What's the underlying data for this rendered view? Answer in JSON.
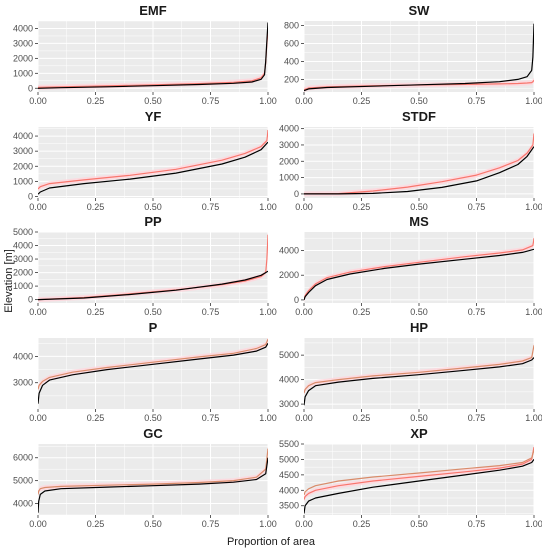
{
  "figure": {
    "xlabel": "Proportion of area",
    "ylabel": "Elevation [m]"
  },
  "colors": {
    "panel_bg": "#ebebeb",
    "grid_major": "#ffffff",
    "observed": "#000000",
    "modelled": "#f8766d",
    "modelled_alt": "#d98b6a",
    "ribbon": "#ffd6dc"
  },
  "chart_data": [
    {
      "type": "line",
      "title": "EMF",
      "xlim": [
        0,
        1
      ],
      "ylim": [
        -250,
        4500
      ],
      "xticks": [
        0,
        0.25,
        0.5,
        0.75,
        1
      ],
      "xtick_labels": [
        "0.00",
        "0.25",
        "0.50",
        "0.75",
        "1.00"
      ],
      "yticks": [
        0,
        1000,
        2000,
        3000,
        4000
      ],
      "ytick_labels": [
        "0",
        "1000",
        "2000",
        "3000",
        "4000"
      ],
      "series": [
        {
          "color": "observed",
          "x": [
            0,
            0.1,
            0.3,
            0.5,
            0.7,
            0.85,
            0.93,
            0.97,
            0.985,
            0.99,
            0.995,
            1.0
          ],
          "y": [
            0,
            40,
            100,
            170,
            250,
            330,
            420,
            600,
            900,
            1800,
            3200,
            4400
          ]
        },
        {
          "color": "modelled",
          "x": [
            0,
            0.1,
            0.3,
            0.5,
            0.7,
            0.85,
            0.93,
            0.97,
            0.985,
            0.99,
            0.995,
            1.0
          ],
          "y": [
            60,
            100,
            160,
            230,
            310,
            400,
            500,
            700,
            1000,
            1700,
            3000,
            3800
          ]
        }
      ]
    },
    {
      "type": "line",
      "title": "SW",
      "xlim": [
        0,
        1
      ],
      "ylim": [
        60,
        850
      ],
      "xticks": [
        0,
        0.25,
        0.5,
        0.75,
        1
      ],
      "xtick_labels": [
        "0.00",
        "0.25",
        "0.50",
        "0.75",
        "1.00"
      ],
      "yticks": [
        200,
        400,
        600,
        800
      ],
      "ytick_labels": [
        "200",
        "400",
        "600",
        "800"
      ],
      "series": [
        {
          "color": "observed",
          "x": [
            0,
            0.02,
            0.1,
            0.3,
            0.5,
            0.7,
            0.85,
            0.93,
            0.97,
            0.99,
            0.995,
            1.0
          ],
          "y": [
            75,
            95,
            110,
            125,
            140,
            155,
            175,
            200,
            230,
            300,
            450,
            820
          ]
        },
        {
          "color": "modelled",
          "x": [
            0,
            0.02,
            0.1,
            0.3,
            0.5,
            0.7,
            0.85,
            0.93,
            0.97,
            0.99,
            0.995,
            1.0
          ],
          "y": [
            85,
            105,
            118,
            130,
            138,
            145,
            150,
            155,
            160,
            165,
            175,
            190
          ]
        }
      ]
    },
    {
      "type": "line",
      "title": "YF",
      "xlim": [
        0,
        1
      ],
      "ylim": [
        -100,
        4600
      ],
      "xticks": [
        0,
        0.25,
        0.5,
        0.75,
        1
      ],
      "xtick_labels": [
        "0.00",
        "0.25",
        "0.50",
        "0.75",
        "1.00"
      ],
      "yticks": [
        0,
        1000,
        2000,
        3000,
        4000
      ],
      "ytick_labels": [
        "0",
        "1000",
        "2000",
        "3000",
        "4000"
      ],
      "series": [
        {
          "color": "observed",
          "x": [
            0,
            0.01,
            0.05,
            0.2,
            0.4,
            0.6,
            0.8,
            0.9,
            0.97,
            1.0
          ],
          "y": [
            150,
            300,
            560,
            850,
            1150,
            1550,
            2150,
            2600,
            3100,
            3600
          ]
        },
        {
          "color": "modelled",
          "x": [
            0,
            0.01,
            0.05,
            0.2,
            0.4,
            0.6,
            0.8,
            0.9,
            0.97,
            0.995,
            1.0
          ],
          "y": [
            500,
            650,
            850,
            1100,
            1400,
            1800,
            2400,
            2850,
            3300,
            3700,
            4400
          ]
        }
      ]
    },
    {
      "type": "line",
      "title": "STDF",
      "xlim": [
        0,
        1
      ],
      "ylim": [
        -250,
        4100
      ],
      "xticks": [
        0,
        0.25,
        0.5,
        0.75,
        1
      ],
      "xtick_labels": [
        "0.00",
        "0.25",
        "0.50",
        "0.75",
        "1.00"
      ],
      "yticks": [
        0,
        1000,
        2000,
        3000,
        4000
      ],
      "ytick_labels": [
        "0",
        "1000",
        "2000",
        "3000",
        "4000"
      ],
      "series": [
        {
          "color": "observed",
          "x": [
            0,
            0.15,
            0.3,
            0.45,
            0.6,
            0.75,
            0.85,
            0.93,
            0.97,
            1.0
          ],
          "y": [
            0,
            0,
            30,
            150,
            400,
            800,
            1300,
            1800,
            2300,
            2900
          ]
        },
        {
          "color": "modelled",
          "x": [
            0,
            0.15,
            0.3,
            0.45,
            0.6,
            0.75,
            0.85,
            0.93,
            0.97,
            0.995,
            1.0
          ],
          "y": [
            0,
            20,
            180,
            420,
            750,
            1150,
            1600,
            2050,
            2500,
            3000,
            3700
          ]
        }
      ]
    },
    {
      "type": "line",
      "title": "PP",
      "xlim": [
        0,
        1
      ],
      "ylim": [
        -250,
        5000
      ],
      "xticks": [
        0,
        0.25,
        0.5,
        0.75,
        1
      ],
      "xtick_labels": [
        "0.00",
        "0.25",
        "0.50",
        "0.75",
        "1.00"
      ],
      "yticks": [
        0,
        1000,
        2000,
        3000,
        4000,
        5000
      ],
      "ytick_labels": [
        "0",
        "1000",
        "2000",
        "3000",
        "4000",
        "5000"
      ],
      "series": [
        {
          "color": "observed",
          "x": [
            0,
            0.2,
            0.4,
            0.6,
            0.8,
            0.9,
            0.97,
            0.99,
            1.0
          ],
          "y": [
            0,
            120,
            380,
            700,
            1150,
            1450,
            1800,
            2000,
            2100
          ]
        },
        {
          "color": "modelled",
          "x": [
            0,
            0.2,
            0.4,
            0.6,
            0.8,
            0.9,
            0.97,
            0.99,
            0.995,
            1.0
          ],
          "y": [
            0,
            160,
            420,
            720,
            1100,
            1380,
            1700,
            2000,
            3000,
            4800
          ]
        }
      ]
    },
    {
      "type": "line",
      "title": "MS",
      "xlim": [
        0,
        1
      ],
      "ylim": [
        -250,
        5500
      ],
      "xticks": [
        0,
        0.25,
        0.5,
        0.75,
        1
      ],
      "xtick_labels": [
        "0.00",
        "0.25",
        "0.50",
        "0.75",
        "1.00"
      ],
      "yticks": [
        0,
        2000,
        4000
      ],
      "ytick_labels": [
        "0",
        "2000",
        "4000"
      ],
      "series": [
        {
          "color": "observed",
          "x": [
            0,
            0.005,
            0.02,
            0.05,
            0.1,
            0.2,
            0.35,
            0.5,
            0.7,
            0.85,
            0.95,
            1.0
          ],
          "y": [
            0,
            250,
            600,
            1150,
            1650,
            2100,
            2550,
            2900,
            3300,
            3600,
            3850,
            4100
          ]
        },
        {
          "color": "modelled",
          "x": [
            0,
            0.005,
            0.02,
            0.05,
            0.1,
            0.2,
            0.35,
            0.5,
            0.7,
            0.85,
            0.95,
            0.995,
            1.0
          ],
          "y": [
            0,
            350,
            750,
            1300,
            1800,
            2250,
            2700,
            3050,
            3500,
            3800,
            4050,
            4400,
            5000
          ]
        }
      ]
    },
    {
      "type": "line",
      "title": "P",
      "xlim": [
        0,
        1
      ],
      "ylim": [
        2000,
        4700
      ],
      "xticks": [
        0,
        0.25,
        0.5,
        0.75,
        1
      ],
      "xtick_labels": [
        "0.00",
        "0.25",
        "0.50",
        "0.75",
        "1.00"
      ],
      "yticks": [
        3000,
        4000
      ],
      "ytick_labels": [
        "3000",
        "4000"
      ],
      "series": [
        {
          "color": "observed",
          "x": [
            0,
            0.005,
            0.02,
            0.05,
            0.15,
            0.3,
            0.5,
            0.7,
            0.85,
            0.95,
            0.99,
            1.0
          ],
          "y": [
            2200,
            2600,
            2900,
            3100,
            3300,
            3500,
            3700,
            3900,
            4050,
            4200,
            4350,
            4500
          ]
        },
        {
          "color": "modelled_alt",
          "x": [
            0,
            0.005,
            0.02,
            0.05,
            0.15,
            0.3,
            0.5,
            0.7,
            0.85,
            0.95,
            0.99,
            1.0
          ],
          "y": [
            2750,
            2900,
            3050,
            3200,
            3400,
            3580,
            3780,
            3980,
            4120,
            4300,
            4450,
            4650
          ]
        }
      ]
    },
    {
      "type": "line",
      "title": "HP",
      "xlim": [
        0,
        1
      ],
      "ylim": [
        2800,
        5700
      ],
      "xticks": [
        0,
        0.25,
        0.5,
        0.75,
        1
      ],
      "xtick_labels": [
        "0.00",
        "0.25",
        "0.50",
        "0.75",
        "1.00"
      ],
      "yticks": [
        3000,
        4000,
        5000
      ],
      "ytick_labels": [
        "3000",
        "4000",
        "5000"
      ],
      "series": [
        {
          "color": "observed",
          "x": [
            0,
            0.005,
            0.02,
            0.05,
            0.15,
            0.3,
            0.5,
            0.7,
            0.85,
            0.95,
            0.99,
            1.0
          ],
          "y": [
            2950,
            3300,
            3550,
            3750,
            3900,
            4050,
            4200,
            4380,
            4520,
            4650,
            4800,
            4900
          ]
        },
        {
          "color": "modelled_alt",
          "x": [
            0,
            0.005,
            0.02,
            0.05,
            0.15,
            0.3,
            0.5,
            0.7,
            0.85,
            0.95,
            0.99,
            1.0
          ],
          "y": [
            3450,
            3600,
            3750,
            3880,
            4000,
            4150,
            4300,
            4480,
            4620,
            4760,
            4900,
            5400
          ]
        }
      ]
    },
    {
      "type": "line",
      "title": "GC",
      "xlim": [
        0,
        1
      ],
      "ylim": [
        3500,
        6600
      ],
      "xticks": [
        0,
        0.25,
        0.5,
        0.75,
        1
      ],
      "xtick_labels": [
        "0.00",
        "0.25",
        "0.50",
        "0.75",
        "1.00"
      ],
      "yticks": [
        4000,
        5000,
        6000
      ],
      "ytick_labels": [
        "4000",
        "5000",
        "6000"
      ],
      "series": [
        {
          "color": "observed",
          "x": [
            0,
            0.003,
            0.01,
            0.03,
            0.1,
            0.3,
            0.5,
            0.7,
            0.85,
            0.95,
            0.99,
            1.0
          ],
          "y": [
            3600,
            4100,
            4400,
            4550,
            4650,
            4720,
            4780,
            4850,
            4930,
            5050,
            5300,
            6000
          ]
        },
        {
          "color": "modelled_alt",
          "x": [
            0,
            0.003,
            0.01,
            0.03,
            0.1,
            0.3,
            0.5,
            0.7,
            0.85,
            0.95,
            0.99,
            1.0
          ],
          "y": [
            4400,
            4550,
            4650,
            4700,
            4750,
            4800,
            4850,
            4920,
            5000,
            5150,
            5500,
            6400
          ]
        }
      ]
    },
    {
      "type": "line",
      "title": "XP",
      "xlim": [
        0,
        1
      ],
      "ylim": [
        3200,
        5500
      ],
      "xticks": [
        0,
        0.25,
        0.5,
        0.75,
        1
      ],
      "xtick_labels": [
        "0.00",
        "0.25",
        "0.50",
        "0.75",
        "1.00"
      ],
      "yticks": [
        3500,
        4000,
        4500,
        5000,
        5500
      ],
      "ytick_labels": [
        "3500",
        "4000",
        "4500",
        "5000",
        "5500"
      ],
      "series": [
        {
          "color": "observed",
          "x": [
            0,
            0.005,
            0.02,
            0.05,
            0.15,
            0.3,
            0.5,
            0.7,
            0.85,
            0.95,
            0.99,
            1.0
          ],
          "y": [
            3250,
            3500,
            3650,
            3750,
            3900,
            4100,
            4300,
            4500,
            4650,
            4780,
            4900,
            5000
          ]
        },
        {
          "color": "modelled",
          "x": [
            0,
            0.005,
            0.02,
            0.05,
            0.15,
            0.3,
            0.5,
            0.7,
            0.85,
            0.95,
            0.99,
            1.0
          ],
          "y": [
            3700,
            3800,
            3900,
            4000,
            4150,
            4300,
            4450,
            4600,
            4720,
            4850,
            5000,
            5400
          ]
        },
        {
          "color": "modelled_alt",
          "x": [
            0,
            0.005,
            0.02,
            0.05,
            0.15,
            0.3,
            0.5,
            0.7,
            0.85,
            0.95,
            0.99,
            1.0
          ],
          "y": [
            3850,
            3950,
            4050,
            4150,
            4300,
            4430,
            4560,
            4700,
            4800,
            4900,
            5050,
            5300
          ]
        }
      ]
    }
  ]
}
